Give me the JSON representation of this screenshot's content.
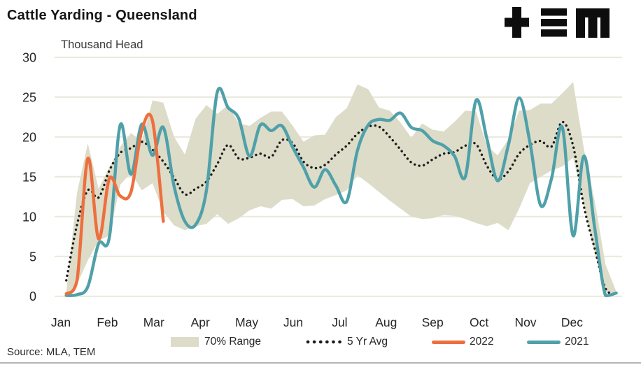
{
  "header": {
    "title": "Cattle Yarding - Queensland",
    "subtitle": "Thousand Head",
    "logo": "tem-logo"
  },
  "footer": {
    "source": "Source: MLA, TEM"
  },
  "colors": {
    "band": "#dcdcc8",
    "avg": "#1c1c1c",
    "y2022": "#ed6f3e",
    "y2021": "#4fa0a9",
    "grid": "#e8e8dc",
    "text": "#262626",
    "logo": "#0d0d0d",
    "separator": "#b5b5b5"
  },
  "chart_data": {
    "type": "line",
    "title": "Cattle Yarding - Queensland",
    "ylabel": "Thousand Head",
    "xlabel": "",
    "x_unit": "week of year (1-52)",
    "ylim": [
      0,
      30
    ],
    "grid": "horizontal",
    "legend_position": "bottom",
    "y_ticks": [
      0,
      5,
      10,
      15,
      20,
      25,
      30
    ],
    "months": [
      "Jan",
      "Feb",
      "Mar",
      "Apr",
      "May",
      "Jun",
      "Jul",
      "Aug",
      "Sep",
      "Oct",
      "Nov",
      "Dec"
    ],
    "legend": [
      {
        "label": "70% Range",
        "style": "band"
      },
      {
        "label": "5 Yr Avg",
        "style": "dotted"
      },
      {
        "label": "2022",
        "style": "line"
      },
      {
        "label": "2021",
        "style": "line"
      }
    ],
    "series": [
      {
        "name": "70% Range",
        "type": "band",
        "upper": [
          0.5,
          13.0,
          19.2,
          13.5,
          16.2,
          18.8,
          20.5,
          19.4,
          24.6,
          24.3,
          20.0,
          17.8,
          22.3,
          24.0,
          22.9,
          24.0,
          21.7,
          21.4,
          22.4,
          23.2,
          23.2,
          21.4,
          19.4,
          20.2,
          20.3,
          22.5,
          23.6,
          26.6,
          26.0,
          23.7,
          23.3,
          21.8,
          19.9,
          21.7,
          20.9,
          20.7,
          21.9,
          23.3,
          23.2,
          18.9,
          17.7,
          19.7,
          23.3,
          23.4,
          24.2,
          24.2,
          25.5,
          26.9,
          18.5,
          12.0,
          4.0,
          0.6
        ],
        "lower": [
          0.1,
          1.5,
          4.5,
          7.0,
          7.6,
          14.0,
          15.5,
          13.3,
          14.2,
          10.6,
          8.9,
          8.3,
          8.8,
          9.1,
          10.3,
          9.1,
          9.8,
          10.8,
          11.3,
          11.0,
          12.1,
          12.2,
          11.3,
          11.4,
          12.2,
          12.7,
          13.3,
          15.2,
          14.2,
          13.1,
          12.0,
          11.0,
          10.0,
          9.7,
          9.8,
          10.2,
          10.1,
          9.7,
          9.2,
          8.8,
          9.2,
          8.3,
          11.0,
          14.2,
          15.0,
          15.8,
          16.3,
          17.4,
          11.5,
          5.5,
          0.5,
          0.2
        ]
      },
      {
        "name": "5 Yr Avg",
        "type": "dotted",
        "values": [
          2.0,
          9.0,
          13.3,
          12.4,
          15.8,
          18.0,
          18.6,
          19.4,
          18.4,
          16.9,
          14.9,
          12.8,
          13.5,
          14.4,
          16.6,
          19.0,
          17.3,
          17.4,
          17.9,
          17.5,
          19.6,
          19.2,
          16.9,
          16.1,
          16.5,
          17.8,
          18.9,
          20.4,
          21.3,
          21.3,
          20.0,
          18.4,
          16.8,
          16.4,
          17.2,
          17.9,
          18.1,
          18.9,
          19.1,
          16.4,
          14.7,
          15.7,
          17.9,
          19.0,
          19.5,
          18.8,
          21.9,
          18.9,
          11.3,
          6.0,
          1.0,
          0.3
        ]
      },
      {
        "name": "2022",
        "type": "line",
        "values": [
          0.3,
          2.0,
          17.3,
          7.2,
          14.8,
          12.6,
          13.1,
          20.8,
          22.0,
          9.4,
          null,
          null,
          null,
          null,
          null,
          null,
          null,
          null,
          null,
          null,
          null,
          null,
          null,
          null,
          null,
          null,
          null,
          null,
          null,
          null,
          null,
          null,
          null,
          null,
          null,
          null,
          null,
          null,
          null,
          null,
          null,
          null,
          null,
          null,
          null,
          null,
          null,
          null,
          null,
          null,
          null,
          null
        ]
      },
      {
        "name": "2021",
        "type": "line",
        "values": [
          0.1,
          0.2,
          1.2,
          6.6,
          7.4,
          21.5,
          15.3,
          21.6,
          17.7,
          21.2,
          13.8,
          9.4,
          9.0,
          13.3,
          25.6,
          23.7,
          22.3,
          17.6,
          21.5,
          20.8,
          21.4,
          18.7,
          16.2,
          13.7,
          15.9,
          13.9,
          11.9,
          18.3,
          21.5,
          22.2,
          22.1,
          23.0,
          21.2,
          20.8,
          19.5,
          18.9,
          17.6,
          15.0,
          24.6,
          19.8,
          14.5,
          19.0,
          24.9,
          19.3,
          11.4,
          14.8,
          21.2,
          7.6,
          17.6,
          8.6,
          0.1,
          0.4
        ]
      }
    ]
  }
}
